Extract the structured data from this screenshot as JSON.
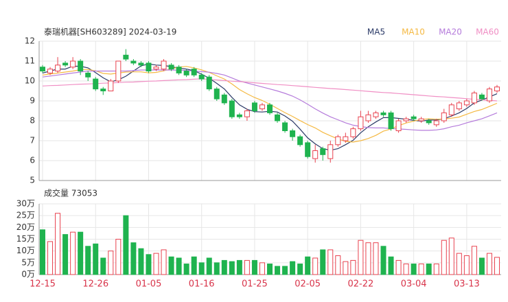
{
  "chart_data": [
    {
      "type": "candlestick",
      "title": "泰瑞机器[SH603289] 2024-03-19",
      "open": [
        10.7,
        10.4,
        10.5,
        10.9,
        10.7,
        11.0,
        10.4,
        10.1,
        9.6,
        9.5,
        10.0,
        11.3,
        11.0,
        10.9,
        10.9,
        10.6,
        10.6,
        10.8,
        10.7,
        10.5,
        10.6,
        10.3,
        10.2,
        9.6,
        9.3,
        9.0,
        8.3,
        8.2,
        8.9,
        8.6,
        8.8,
        8.3,
        7.9,
        7.5,
        7.2,
        6.9,
        6.1,
        6.6,
        6.1,
        6.8,
        7.0,
        7.2,
        7.6,
        8.0,
        8.2,
        8.4,
        8.4,
        7.5,
        8.0,
        8.2,
        8.0,
        8.0,
        7.8,
        8.0,
        8.3,
        8.6,
        8.8,
        8.9,
        9.3,
        9.0,
        9.5
      ],
      "close": [
        10.5,
        10.6,
        10.8,
        10.8,
        11.0,
        10.5,
        10.2,
        9.6,
        9.5,
        10.0,
        11.0,
        11.1,
        10.9,
        10.8,
        10.5,
        10.7,
        11.0,
        10.6,
        10.4,
        10.3,
        10.3,
        10.1,
        9.6,
        9.1,
        8.9,
        8.2,
        8.2,
        8.5,
        8.5,
        8.8,
        8.4,
        8.0,
        7.5,
        7.2,
        6.8,
        6.2,
        6.5,
        6.3,
        6.8,
        7.2,
        7.2,
        7.6,
        8.2,
        8.3,
        8.4,
        8.3,
        7.6,
        8.0,
        8.1,
        8.1,
        8.1,
        7.9,
        8.0,
        8.4,
        8.8,
        8.9,
        9.0,
        9.4,
        9.1,
        9.6,
        9.7
      ],
      "high": [
        10.8,
        10.7,
        11.2,
        11.0,
        11.2,
        11.1,
        10.5,
        10.2,
        9.7,
        10.1,
        11.0,
        11.6,
        11.1,
        11.0,
        11.0,
        10.8,
        11.1,
        10.9,
        10.8,
        10.6,
        10.7,
        10.4,
        10.3,
        9.7,
        9.4,
        9.1,
        8.4,
        8.6,
        9.0,
        8.9,
        8.9,
        8.4,
        8.0,
        7.6,
        7.3,
        7.0,
        6.8,
        6.7,
        7.0,
        7.3,
        7.4,
        7.7,
        8.5,
        8.5,
        8.5,
        8.5,
        8.5,
        8.1,
        8.2,
        8.3,
        8.2,
        8.1,
        8.1,
        8.6,
        8.9,
        9.0,
        9.1,
        9.5,
        9.4,
        9.7,
        9.8
      ],
      "low": [
        10.4,
        10.3,
        10.4,
        10.7,
        10.6,
        10.3,
        10.0,
        9.5,
        9.3,
        9.5,
        9.9,
        11.0,
        10.8,
        10.7,
        10.4,
        10.5,
        10.5,
        10.5,
        10.3,
        10.2,
        10.2,
        10.0,
        9.5,
        9.0,
        8.8,
        8.1,
        8.1,
        8.0,
        8.4,
        8.5,
        8.3,
        7.9,
        7.4,
        7.0,
        6.7,
        6.1,
        5.9,
        6.0,
        5.9,
        6.7,
        6.9,
        7.1,
        7.5,
        7.9,
        8.1,
        8.2,
        7.5,
        7.4,
        7.9,
        8.0,
        7.9,
        7.8,
        7.7,
        7.9,
        8.2,
        8.5,
        8.7,
        8.8,
        9.0,
        8.9,
        9.4
      ],
      "up_color": "#e8414e",
      "down_color": "#1fb34f",
      "series": [
        {
          "name": "MA5",
          "color": "#2b3a67",
          "values": [
            10.4,
            10.5,
            10.6,
            10.6,
            10.74,
            10.74,
            10.66,
            10.42,
            10.16,
            9.96,
            10.06,
            10.24,
            10.5,
            10.76,
            10.86,
            10.8,
            10.78,
            10.72,
            10.64,
            10.6,
            10.52,
            10.34,
            10.14,
            9.88,
            9.6,
            9.18,
            8.8,
            8.58,
            8.46,
            8.44,
            8.48,
            8.44,
            8.24,
            7.98,
            7.58,
            7.14,
            6.84,
            6.6,
            6.52,
            6.6,
            6.8,
            7.02,
            7.4,
            7.7,
            7.94,
            8.16,
            8.16,
            8.12,
            8.08,
            8.02,
            7.98,
            8.04,
            8.04,
            8.1,
            8.24,
            8.4,
            8.62,
            8.9,
            9.04,
            9.2,
            9.36
          ]
        },
        {
          "name": "MA10",
          "color": "#f5b942",
          "values": [
            10.3,
            10.35,
            10.4,
            10.45,
            10.5,
            10.57,
            10.58,
            10.51,
            10.38,
            10.35,
            10.4,
            10.45,
            10.46,
            10.46,
            10.41,
            10.43,
            10.51,
            10.61,
            10.7,
            10.73,
            10.66,
            10.56,
            10.43,
            10.26,
            10.1,
            9.85,
            9.57,
            9.36,
            9.17,
            9.02,
            8.83,
            8.62,
            8.41,
            8.22,
            8.01,
            7.81,
            7.64,
            7.42,
            7.25,
            7.09,
            6.97,
            6.93,
            7.0,
            7.11,
            7.27,
            7.48,
            7.59,
            7.76,
            7.89,
            7.98,
            8.07,
            8.1,
            8.08,
            8.09,
            8.13,
            8.19,
            8.33,
            8.47,
            8.57,
            8.72,
            8.88
          ]
        },
        {
          "name": "MA20",
          "color": "#b57bdb",
          "values": [
            10.2,
            10.25,
            10.3,
            10.35,
            10.4,
            10.45,
            10.5,
            10.5,
            10.5,
            10.5,
            10.5,
            10.5,
            10.52,
            10.55,
            10.55,
            10.55,
            10.55,
            10.55,
            10.54,
            10.53,
            10.5,
            10.47,
            10.44,
            10.38,
            10.3,
            10.15,
            10.0,
            9.9,
            9.8,
            9.7,
            9.6,
            9.5,
            9.38,
            9.24,
            9.05,
            8.83,
            8.6,
            8.39,
            8.2,
            8.05,
            7.9,
            7.78,
            7.71,
            7.66,
            7.64,
            7.64,
            7.61,
            7.59,
            7.57,
            7.54,
            7.52,
            7.52,
            7.54,
            7.6,
            7.7,
            7.78,
            7.9,
            8.0,
            8.1,
            8.25,
            8.4
          ]
        },
        {
          "name": "MA60",
          "color": "#f08ec4",
          "values": [
            9.75,
            9.77,
            9.78,
            9.8,
            9.82,
            9.84,
            9.85,
            9.87,
            9.89,
            9.9,
            9.92,
            9.94,
            9.95,
            9.97,
            9.99,
            10.0,
            10.02,
            10.04,
            10.06,
            10.07,
            10.09,
            10.11,
            10.08,
            10.05,
            10.02,
            9.99,
            9.97,
            9.94,
            9.91,
            9.88,
            9.85,
            9.82,
            9.8,
            9.77,
            9.74,
            9.71,
            9.68,
            9.65,
            9.62,
            9.6,
            9.57,
            9.54,
            9.51,
            9.48,
            9.45,
            9.42,
            9.4,
            9.37,
            9.34,
            9.31,
            9.28,
            9.25,
            9.22,
            9.2,
            9.17,
            9.14,
            9.11,
            9.08,
            9.05,
            9.03,
            9.0
          ]
        }
      ],
      "ylim": [
        5,
        12
      ],
      "yticks": [
        5,
        6,
        7,
        8,
        9,
        10,
        11,
        12
      ],
      "grid": true
    },
    {
      "type": "bar",
      "title": "成交量 73053",
      "categories": [
        "12-15",
        null,
        null,
        null,
        null,
        null,
        null,
        "12-26",
        null,
        null,
        null,
        null,
        null,
        null,
        "01-05",
        null,
        null,
        null,
        null,
        null,
        null,
        "01-16",
        null,
        null,
        null,
        null,
        null,
        null,
        "01-25",
        null,
        null,
        null,
        null,
        null,
        null,
        "02-05",
        null,
        null,
        null,
        null,
        null,
        null,
        "02-22",
        null,
        null,
        null,
        null,
        null,
        null,
        "03-04",
        null,
        null,
        null,
        null,
        null,
        null,
        "03-13",
        null,
        null,
        null,
        null
      ],
      "values": [
        190000,
        140000,
        260000,
        170000,
        180000,
        180000,
        120000,
        130000,
        70000,
        100000,
        150000,
        250000,
        135000,
        110000,
        85000,
        90000,
        105000,
        75000,
        70000,
        45000,
        75000,
        50000,
        70000,
        50000,
        60000,
        55000,
        60000,
        60000,
        60000,
        50000,
        45000,
        35000,
        35000,
        55000,
        45000,
        75000,
        70000,
        105000,
        105000,
        80000,
        55000,
        60000,
        145000,
        135000,
        135000,
        120000,
        75000,
        60000,
        45000,
        45000,
        45000,
        45000,
        45000,
        145000,
        155000,
        90000,
        80000,
        120000,
        70000,
        90000,
        73053
      ],
      "ylim": [
        0,
        300000
      ],
      "yticks": [
        {
          "value": 0,
          "label": "0万"
        },
        {
          "value": 50000,
          "label": "5万"
        },
        {
          "value": 100000,
          "label": "10万"
        },
        {
          "value": 150000,
          "label": "15万"
        },
        {
          "value": 200000,
          "label": "20万"
        },
        {
          "value": 250000,
          "label": "25万"
        },
        {
          "value": 300000,
          "label": "30万"
        }
      ],
      "grid": true
    }
  ]
}
